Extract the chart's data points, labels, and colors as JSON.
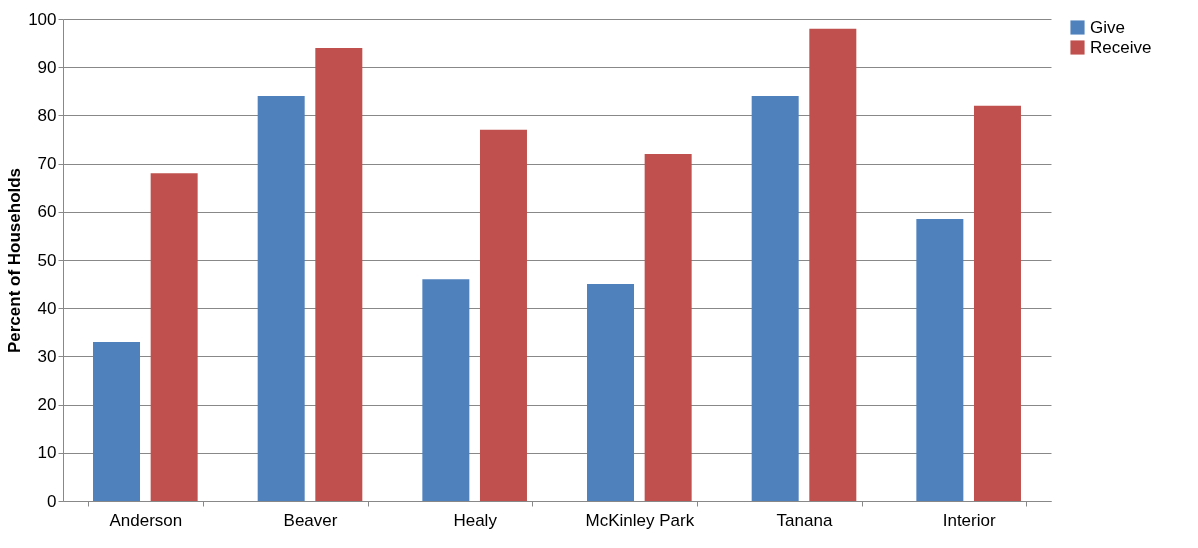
{
  "chart_data": {
    "type": "bar",
    "ylabel": "Percent of Households",
    "categories": [
      "Anderson",
      "Beaver",
      "Healy",
      "McKinley Park",
      "Tanana",
      "Interior"
    ],
    "series": [
      {
        "name": "Give",
        "color": "#4f81bd",
        "values": [
          33,
          84,
          46,
          45,
          84,
          58.5
        ]
      },
      {
        "name": "Receive",
        "color": "#c0504d",
        "values": [
          68,
          94,
          77,
          72,
          98,
          82
        ]
      }
    ],
    "ylim": [
      0,
      100
    ],
    "yticks": [
      0,
      10,
      20,
      30,
      40,
      50,
      60,
      70,
      80,
      90,
      100
    ],
    "grid": "y",
    "legend": "right"
  }
}
